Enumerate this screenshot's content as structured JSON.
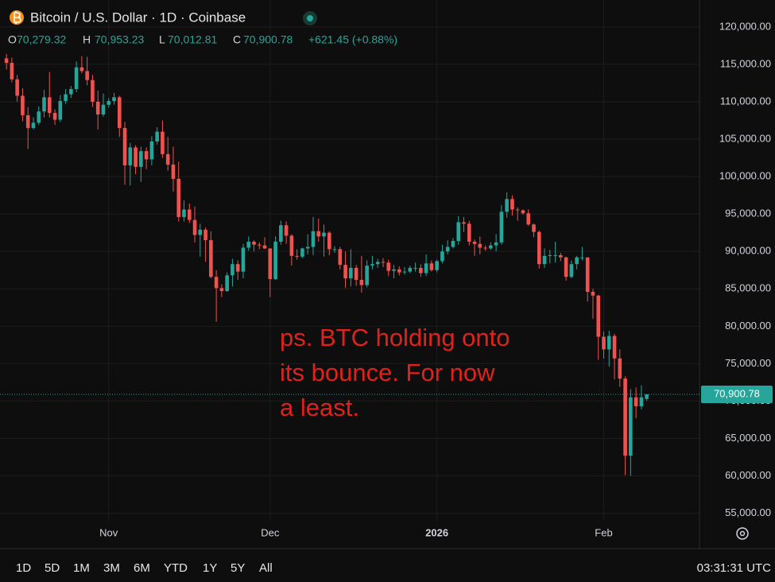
{
  "chart_data": {
    "type": "candlestick",
    "symbol_title": "Bitcoin / U.S. Dollar · 1D · Coinbase",
    "ohlc_legend": [
      {
        "label": "O",
        "value": "70,279.32"
      },
      {
        "label": "H",
        "value": "70,953.23"
      },
      {
        "label": "L",
        "value": "70,012.81"
      },
      {
        "label": "C",
        "value": "70,900.78"
      }
    ],
    "change": "+621.45 (+0.88%)",
    "last_price_label": "70,900.78",
    "annotation": [
      "ps. BTC holding onto",
      "its bounce. For now",
      "a least."
    ],
    "range_buttons": [
      "1D",
      "5D",
      "1M",
      "3M",
      "6M",
      "YTD",
      "1Y",
      "5Y",
      "All"
    ],
    "clock": "03:31:31 UTC",
    "up_color": "#26a69a",
    "down_color": "#ef5350",
    "annotation_color": "#e0221c",
    "grid": true,
    "xlim": [
      -1.2,
      128.8
    ],
    "xticks": [
      {
        "value": 19,
        "label": "Nov"
      },
      {
        "value": 49,
        "label": "Dec"
      },
      {
        "value": 80,
        "label": "2026"
      },
      {
        "value": 111,
        "label": "Feb"
      }
    ],
    "ylim": [
      54000,
      123600
    ],
    "yticks": [
      {
        "value": 55000,
        "label": "55,000.00"
      },
      {
        "value": 60000,
        "label": "60,000.00"
      },
      {
        "value": 65000,
        "label": "65,000.00"
      },
      {
        "value": 70000,
        "label": "70,000.00"
      },
      {
        "value": 75000,
        "label": "75,000.00"
      },
      {
        "value": 80000,
        "label": "80,000.00"
      },
      {
        "value": 85000,
        "label": "85,000.00"
      },
      {
        "value": 90000,
        "label": "90,000.00"
      },
      {
        "value": 95000,
        "label": "95,000.00"
      },
      {
        "value": 100000,
        "label": "100,000.00"
      },
      {
        "value": 105000,
        "label": "105,000.00"
      },
      {
        "value": 110000,
        "label": "110,000.00"
      },
      {
        "value": 115000,
        "label": "115,000.00"
      },
      {
        "value": 120000,
        "label": "120,000.00"
      }
    ],
    "open": [
      115800,
      115200,
      113000,
      110800,
      108200,
      106500,
      107200,
      108700,
      110600,
      108500,
      107600,
      110100,
      111000,
      111700,
      114600,
      114100,
      112900,
      110000,
      108300,
      109600,
      110100,
      110600,
      106500,
      101500,
      103900,
      101300,
      103400,
      102300,
      104700,
      106000,
      103000,
      101600,
      99700,
      94600,
      95600,
      94200,
      92200,
      92900,
      91500,
      86600,
      85100,
      84700,
      86800,
      88300,
      87300,
      90500,
      91300,
      90900,
      90800,
      90400,
      86300,
      91300,
      93500,
      92100,
      89400,
      89300,
      90400,
      90600,
      92700,
      92000,
      92500,
      90300,
      90300,
      88200,
      86400,
      87800,
      86200,
      85500,
      88100,
      88300,
      88600,
      88500,
      87400,
      87600,
      87200,
      87300,
      87800,
      87800,
      87100,
      88400,
      87500,
      88700,
      90000,
      90600,
      91400,
      93900,
      93700,
      91300,
      91000,
      90500,
      90400,
      90800,
      91200,
      95300,
      97000,
      95600,
      95500,
      95100,
      93600,
      92600,
      88300,
      89400,
      89500,
      89500,
      89200,
      86600,
      88300,
      89200,
      89200,
      84600,
      84100,
      78600,
      76900,
      78700,
      75700,
      73000,
      62700,
      70500,
      69300,
      70279.32
    ],
    "high": [
      116400,
      115900,
      113600,
      111800,
      109300,
      107900,
      109400,
      111600,
      114000,
      109000,
      110900,
      111700,
      112100,
      115400,
      116100,
      116000,
      113600,
      111500,
      111100,
      110500,
      111200,
      110800,
      107300,
      104500,
      104200,
      104000,
      103900,
      105400,
      106600,
      107500,
      105300,
      104000,
      102000,
      96800,
      96400,
      96000,
      93700,
      93200,
      92700,
      87500,
      85600,
      87200,
      89000,
      88800,
      91000,
      92000,
      91500,
      91200,
      91900,
      90400,
      92000,
      94100,
      94000,
      92300,
      90300,
      90500,
      92300,
      94600,
      94400,
      93600,
      92700,
      90700,
      90600,
      90000,
      90300,
      88200,
      89400,
      88800,
      89400,
      89000,
      89100,
      88900,
      88200,
      88000,
      87900,
      88100,
      88500,
      88300,
      89600,
      88800,
      88900,
      90900,
      91500,
      91800,
      94700,
      94600,
      94100,
      91600,
      92000,
      90800,
      91200,
      92300,
      96200,
      97900,
      97500,
      95900,
      95600,
      95600,
      93700,
      92800,
      90400,
      90200,
      91300,
      89800,
      89300,
      88800,
      89400,
      90600,
      89200,
      85000,
      84200,
      79300,
      79400,
      79000,
      76900,
      73300,
      71600,
      71800,
      72100,
      70953.23
    ],
    "low": [
      114300,
      112600,
      110000,
      107400,
      103700,
      106300,
      106900,
      107900,
      107900,
      106900,
      107300,
      109700,
      110500,
      111300,
      113800,
      112200,
      109300,
      106300,
      108000,
      109200,
      109600,
      105300,
      98900,
      98800,
      100300,
      99300,
      101000,
      101500,
      104300,
      102500,
      100800,
      98000,
      94000,
      94000,
      93800,
      91200,
      89300,
      88600,
      86400,
      80600,
      83900,
      84600,
      85300,
      86200,
      86400,
      90100,
      90000,
      90300,
      90300,
      83900,
      86200,
      90900,
      91000,
      88100,
      88900,
      89100,
      89600,
      89500,
      91300,
      89300,
      89500,
      89800,
      87600,
      85100,
      85300,
      85400,
      84500,
      85200,
      87600,
      87800,
      87900,
      86700,
      86400,
      86800,
      86900,
      87100,
      87300,
      86600,
      86700,
      87300,
      87200,
      88400,
      89600,
      90400,
      90900,
      92600,
      90800,
      89400,
      89600,
      90100,
      90200,
      90000,
      90900,
      94500,
      94800,
      94100,
      94900,
      93400,
      91900,
      87700,
      87800,
      88400,
      88500,
      88700,
      86100,
      86400,
      87600,
      88800,
      83300,
      81000,
      75500,
      75700,
      74600,
      72900,
      71900,
      60100,
      60000,
      67700,
      68900,
      70012.81
    ],
    "close": [
      115200,
      113000,
      110800,
      108200,
      106500,
      107200,
      108700,
      110600,
      108500,
      107600,
      110100,
      111000,
      111700,
      114600,
      114100,
      112900,
      110000,
      108300,
      109600,
      110100,
      110600,
      106500,
      101500,
      103900,
      101300,
      103400,
      102300,
      104700,
      106000,
      103000,
      101600,
      99700,
      94600,
      95600,
      94200,
      92200,
      92900,
      91500,
      86600,
      85100,
      84700,
      86800,
      88300,
      87300,
      90500,
      91300,
      90900,
      90800,
      90400,
      86300,
      91300,
      93500,
      92100,
      89400,
      89300,
      90400,
      90600,
      92700,
      92000,
      92500,
      90300,
      90300,
      88200,
      86400,
      87800,
      86200,
      85500,
      88100,
      88300,
      88600,
      88500,
      87400,
      87600,
      87200,
      87300,
      87800,
      87800,
      87100,
      88400,
      87500,
      88700,
      90000,
      90600,
      91400,
      93900,
      93700,
      91300,
      91000,
      90500,
      90400,
      90800,
      91200,
      95300,
      97000,
      95600,
      95500,
      95100,
      93600,
      92600,
      88300,
      89400,
      89500,
      89500,
      89200,
      86600,
      88300,
      89200,
      89200,
      84600,
      84100,
      78600,
      76900,
      78700,
      75700,
      73000,
      62700,
      70500,
      69300,
      70500,
      70900.78
    ]
  }
}
